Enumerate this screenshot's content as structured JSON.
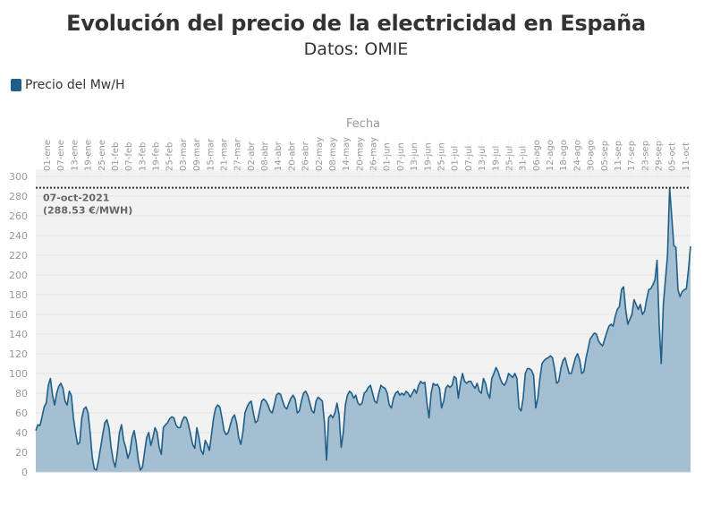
{
  "title": "Evolución del precio de la electricidad en España",
  "subtitle": "Datos: OMIE",
  "legend": {
    "label": "Precio del Mw/H",
    "color": "#1e5f8a"
  },
  "colors": {
    "line": "#1e5f8a",
    "fill": "#a3bfd1",
    "plot_bg": "#f2f2f2",
    "grid": "#e4e4e4",
    "axis_text": "#999999",
    "annotation": "#666666"
  },
  "chart_data": {
    "type": "area",
    "title": "Evolución del precio de la electricidad en España",
    "subtitle": "Datos: OMIE",
    "xlabel": "Fecha",
    "ylabel": "",
    "ylim": [
      0,
      300
    ],
    "yticks": [
      0,
      20,
      40,
      60,
      80,
      100,
      120,
      140,
      160,
      180,
      200,
      220,
      240,
      260,
      280,
      300
    ],
    "grid": true,
    "legend_position": "top-left",
    "x_tick_labels": [
      "01-ene",
      "07-ene",
      "13-ene",
      "19-ene",
      "25-ene",
      "01-feb",
      "07-feb",
      "13-feb",
      "19-feb",
      "25-feb",
      "03-mar",
      "09-mar",
      "15-mar",
      "21-mar",
      "27-mar",
      "02-abr",
      "08-abr",
      "14-abr",
      "20-abr",
      "26-abr",
      "02-may",
      "08-may",
      "14-may",
      "20-may",
      "26-may",
      "01-jun",
      "07-jun",
      "13-jun",
      "19-jun",
      "25-jun",
      "01-jul",
      "07-jul",
      "13-jul",
      "19-jul",
      "25-jul",
      "31-jul",
      "06-ago",
      "12-ago",
      "18-ago",
      "24-ago",
      "30-ago",
      "05-sep",
      "11-sep",
      "17-sep",
      "23-sep",
      "29-sep",
      "05-oct",
      "11-oct"
    ],
    "series": [
      {
        "name": "Precio del Mw/H",
        "points": [
          [
            1,
            42
          ],
          [
            2,
            48
          ],
          [
            3,
            47
          ],
          [
            4,
            56
          ],
          [
            5,
            66
          ],
          [
            6,
            70
          ],
          [
            7,
            88
          ],
          [
            8,
            95
          ],
          [
            9,
            78
          ],
          [
            10,
            68
          ],
          [
            11,
            80
          ],
          [
            12,
            87
          ],
          [
            13,
            90
          ],
          [
            14,
            85
          ],
          [
            15,
            72
          ],
          [
            16,
            68
          ],
          [
            17,
            82
          ],
          [
            18,
            78
          ],
          [
            19,
            55
          ],
          [
            20,
            40
          ],
          [
            21,
            28
          ],
          [
            22,
            30
          ],
          [
            23,
            55
          ],
          [
            24,
            64
          ],
          [
            25,
            66
          ],
          [
            26,
            60
          ],
          [
            27,
            40
          ],
          [
            28,
            15
          ],
          [
            29,
            3
          ],
          [
            30,
            2
          ],
          [
            31,
            12
          ],
          [
            32,
            25
          ],
          [
            33,
            38
          ],
          [
            34,
            50
          ],
          [
            35,
            53
          ],
          [
            36,
            45
          ],
          [
            37,
            25
          ],
          [
            38,
            12
          ],
          [
            39,
            5
          ],
          [
            40,
            20
          ],
          [
            41,
            40
          ],
          [
            42,
            48
          ],
          [
            43,
            32
          ],
          [
            44,
            25
          ],
          [
            45,
            14
          ],
          [
            46,
            20
          ],
          [
            47,
            35
          ],
          [
            48,
            42
          ],
          [
            49,
            30
          ],
          [
            50,
            12
          ],
          [
            51,
            2
          ],
          [
            52,
            5
          ],
          [
            53,
            20
          ],
          [
            54,
            35
          ],
          [
            55,
            40
          ],
          [
            56,
            27
          ],
          [
            57,
            35
          ],
          [
            58,
            45
          ],
          [
            59,
            40
          ],
          [
            60,
            25
          ],
          [
            61,
            18
          ],
          [
            62,
            45
          ],
          [
            63,
            48
          ],
          [
            64,
            50
          ],
          [
            65,
            54
          ],
          [
            66,
            56
          ],
          [
            67,
            55
          ],
          [
            68,
            48
          ],
          [
            69,
            45
          ],
          [
            70,
            45
          ],
          [
            71,
            52
          ],
          [
            72,
            56
          ],
          [
            73,
            55
          ],
          [
            74,
            48
          ],
          [
            75,
            38
          ],
          [
            76,
            28
          ],
          [
            77,
            24
          ],
          [
            78,
            45
          ],
          [
            79,
            35
          ],
          [
            80,
            22
          ],
          [
            81,
            18
          ],
          [
            82,
            32
          ],
          [
            83,
            28
          ],
          [
            84,
            22
          ],
          [
            85,
            38
          ],
          [
            86,
            55
          ],
          [
            87,
            65
          ],
          [
            88,
            68
          ],
          [
            89,
            66
          ],
          [
            90,
            55
          ],
          [
            91,
            42
          ],
          [
            92,
            38
          ],
          [
            93,
            40
          ],
          [
            94,
            48
          ],
          [
            95,
            55
          ],
          [
            96,
            58
          ],
          [
            97,
            50
          ],
          [
            98,
            35
          ],
          [
            99,
            28
          ],
          [
            100,
            40
          ],
          [
            101,
            60
          ],
          [
            102,
            66
          ],
          [
            103,
            70
          ],
          [
            104,
            72
          ],
          [
            105,
            60
          ],
          [
            106,
            50
          ],
          [
            107,
            52
          ],
          [
            108,
            62
          ],
          [
            109,
            72
          ],
          [
            110,
            74
          ],
          [
            111,
            72
          ],
          [
            112,
            68
          ],
          [
            113,
            62
          ],
          [
            114,
            60
          ],
          [
            115,
            68
          ],
          [
            116,
            78
          ],
          [
            117,
            80
          ],
          [
            118,
            79
          ],
          [
            119,
            72
          ],
          [
            120,
            66
          ],
          [
            121,
            64
          ],
          [
            122,
            70
          ],
          [
            123,
            75
          ],
          [
            124,
            78
          ],
          [
            125,
            74
          ],
          [
            126,
            60
          ],
          [
            127,
            62
          ],
          [
            128,
            72
          ],
          [
            129,
            80
          ],
          [
            130,
            82
          ],
          [
            131,
            78
          ],
          [
            132,
            70
          ],
          [
            133,
            62
          ],
          [
            134,
            60
          ],
          [
            135,
            72
          ],
          [
            136,
            76
          ],
          [
            137,
            74
          ],
          [
            138,
            72
          ],
          [
            139,
            50
          ],
          [
            140,
            12
          ],
          [
            141,
            55
          ],
          [
            142,
            58
          ],
          [
            143,
            55
          ],
          [
            144,
            60
          ],
          [
            145,
            70
          ],
          [
            146,
            58
          ],
          [
            147,
            25
          ],
          [
            148,
            40
          ],
          [
            149,
            68
          ],
          [
            150,
            78
          ],
          [
            151,
            82
          ],
          [
            152,
            80
          ],
          [
            153,
            75
          ],
          [
            154,
            78
          ],
          [
            155,
            70
          ],
          [
            156,
            68
          ],
          [
            157,
            70
          ],
          [
            158,
            80
          ],
          [
            159,
            82
          ],
          [
            160,
            86
          ],
          [
            161,
            88
          ],
          [
            162,
            80
          ],
          [
            163,
            72
          ],
          [
            164,
            70
          ],
          [
            165,
            80
          ],
          [
            166,
            88
          ],
          [
            167,
            86
          ],
          [
            168,
            85
          ],
          [
            169,
            80
          ],
          [
            170,
            68
          ],
          [
            171,
            65
          ],
          [
            172,
            75
          ],
          [
            173,
            80
          ],
          [
            174,
            82
          ],
          [
            175,
            78
          ],
          [
            176,
            80
          ],
          [
            177,
            78
          ],
          [
            178,
            82
          ],
          [
            179,
            80
          ],
          [
            180,
            76
          ],
          [
            181,
            80
          ],
          [
            182,
            84
          ],
          [
            183,
            80
          ],
          [
            184,
            88
          ],
          [
            185,
            92
          ],
          [
            186,
            90
          ],
          [
            187,
            91
          ],
          [
            188,
            70
          ],
          [
            189,
            55
          ],
          [
            190,
            80
          ],
          [
            191,
            90
          ],
          [
            192,
            88
          ],
          [
            193,
            89
          ],
          [
            194,
            85
          ],
          [
            195,
            65
          ],
          [
            196,
            72
          ],
          [
            197,
            85
          ],
          [
            198,
            88
          ],
          [
            199,
            86
          ],
          [
            200,
            88
          ],
          [
            201,
            97
          ],
          [
            202,
            95
          ],
          [
            203,
            75
          ],
          [
            204,
            90
          ],
          [
            205,
            100
          ],
          [
            206,
            92
          ],
          [
            207,
            90
          ],
          [
            208,
            92
          ],
          [
            209,
            92
          ],
          [
            210,
            88
          ],
          [
            211,
            85
          ],
          [
            212,
            90
          ],
          [
            213,
            82
          ],
          [
            214,
            80
          ],
          [
            215,
            95
          ],
          [
            216,
            90
          ],
          [
            217,
            80
          ],
          [
            218,
            75
          ],
          [
            219,
            95
          ],
          [
            220,
            100
          ],
          [
            221,
            106
          ],
          [
            222,
            102
          ],
          [
            223,
            95
          ],
          [
            224,
            90
          ],
          [
            225,
            88
          ],
          [
            226,
            92
          ],
          [
            227,
            100
          ],
          [
            228,
            98
          ],
          [
            229,
            96
          ],
          [
            230,
            100
          ],
          [
            231,
            95
          ],
          [
            232,
            65
          ],
          [
            233,
            62
          ],
          [
            234,
            75
          ],
          [
            235,
            100
          ],
          [
            236,
            105
          ],
          [
            237,
            105
          ],
          [
            238,
            103
          ],
          [
            239,
            98
          ],
          [
            240,
            65
          ],
          [
            241,
            75
          ],
          [
            242,
            95
          ],
          [
            243,
            110
          ],
          [
            244,
            113
          ],
          [
            245,
            115
          ],
          [
            246,
            116
          ],
          [
            247,
            118
          ],
          [
            248,
            116
          ],
          [
            249,
            105
          ],
          [
            250,
            90
          ],
          [
            251,
            92
          ],
          [
            252,
            105
          ],
          [
            253,
            113
          ],
          [
            254,
            116
          ],
          [
            255,
            108
          ],
          [
            256,
            100
          ],
          [
            257,
            100
          ],
          [
            258,
            108
          ],
          [
            259,
            116
          ],
          [
            260,
            120
          ],
          [
            261,
            114
          ],
          [
            262,
            100
          ],
          [
            263,
            102
          ],
          [
            264,
            115
          ],
          [
            265,
            125
          ],
          [
            266,
            135
          ],
          [
            267,
            138
          ],
          [
            268,
            141
          ],
          [
            269,
            140
          ],
          [
            270,
            133
          ],
          [
            271,
            130
          ],
          [
            272,
            128
          ],
          [
            273,
            135
          ],
          [
            274,
            142
          ],
          [
            275,
            148
          ],
          [
            276,
            150
          ],
          [
            277,
            148
          ],
          [
            278,
            158
          ],
          [
            279,
            165
          ],
          [
            280,
            168
          ],
          [
            281,
            185
          ],
          [
            282,
            188
          ],
          [
            283,
            165
          ],
          [
            284,
            150
          ],
          [
            285,
            155
          ],
          [
            286,
            160
          ],
          [
            287,
            175
          ],
          [
            288,
            170
          ],
          [
            289,
            165
          ],
          [
            290,
            170
          ],
          [
            291,
            160
          ],
          [
            292,
            163
          ],
          [
            293,
            175
          ],
          [
            294,
            185
          ],
          [
            295,
            186
          ],
          [
            296,
            190
          ],
          [
            297,
            195
          ],
          [
            298,
            215
          ],
          [
            299,
            150
          ],
          [
            300,
            110
          ],
          [
            301,
            170
          ],
          [
            302,
            195
          ],
          [
            303,
            220
          ],
          [
            304,
            288.53
          ],
          [
            305,
            260
          ],
          [
            306,
            230
          ],
          [
            307,
            228
          ],
          [
            308,
            185
          ],
          [
            309,
            178
          ],
          [
            310,
            183
          ],
          [
            311,
            185
          ],
          [
            312,
            186
          ],
          [
            313,
            205
          ],
          [
            314,
            229
          ]
        ]
      }
    ],
    "annotation": {
      "date_label": "07-oct-2021",
      "value_label": "(288.53 €/MWH)",
      "value": 288.53
    }
  }
}
